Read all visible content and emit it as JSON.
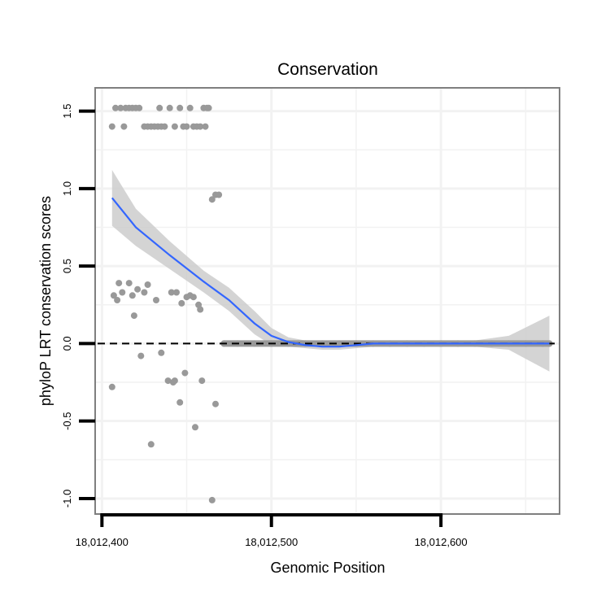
{
  "chart_data": {
    "type": "scatter",
    "title": "Conservation",
    "xlabel": "Genomic Position",
    "ylabel": "phyloP LRT conservation scores",
    "xlim": [
      18012396,
      18012670
    ],
    "ylim": [
      -1.1,
      1.65
    ],
    "x_ticks": [
      {
        "value": 18012400,
        "label": "18,012,400"
      },
      {
        "value": 18012500,
        "label": "18,012,500"
      },
      {
        "value": 18012600,
        "label": "18,012,600"
      }
    ],
    "y_ticks": [
      {
        "value": -1.0,
        "label": "-1.0"
      },
      {
        "value": -0.5,
        "label": "-0.5"
      },
      {
        "value": 0.0,
        "label": "0.0"
      },
      {
        "value": 0.5,
        "label": "0.5"
      },
      {
        "value": 1.0,
        "label": "1.0"
      },
      {
        "value": 1.5,
        "label": "1.5"
      }
    ],
    "reference_line": {
      "y": 0.0,
      "style": "dashed"
    },
    "grid": true,
    "colors": {
      "points": "#999999",
      "smooth_line": "#3366FF",
      "confidence_band": "#CCCCCC",
      "panel_border": "#7F7F7F",
      "grid": "#F2F2F2"
    },
    "points": [
      [
        18012406,
        1.4
      ],
      [
        18012408,
        1.52
      ],
      [
        18012411,
        1.52
      ],
      [
        18012413,
        1.4
      ],
      [
        18012414,
        1.52
      ],
      [
        18012416,
        1.52
      ],
      [
        18012418,
        1.52
      ],
      [
        18012420,
        1.52
      ],
      [
        18012422,
        1.52
      ],
      [
        18012425,
        1.4
      ],
      [
        18012427,
        1.4
      ],
      [
        18012429,
        1.4
      ],
      [
        18012431,
        1.4
      ],
      [
        18012433,
        1.4
      ],
      [
        18012435,
        1.4
      ],
      [
        18012437,
        1.4
      ],
      [
        18012434,
        1.52
      ],
      [
        18012440,
        1.52
      ],
      [
        18012443,
        1.4
      ],
      [
        18012446,
        1.52
      ],
      [
        18012448,
        1.4
      ],
      [
        18012450,
        1.4
      ],
      [
        18012452,
        1.52
      ],
      [
        18012454,
        1.4
      ],
      [
        18012456,
        1.4
      ],
      [
        18012458,
        1.4
      ],
      [
        18012460,
        1.52
      ],
      [
        18012461,
        1.4
      ],
      [
        18012462,
        1.52
      ],
      [
        18012463,
        1.52
      ],
      [
        18012465,
        0.93
      ],
      [
        18012467,
        0.96
      ],
      [
        18012469,
        0.96
      ],
      [
        18012407,
        0.31
      ],
      [
        18012409,
        0.28
      ],
      [
        18012410,
        0.39
      ],
      [
        18012412,
        0.33
      ],
      [
        18012416,
        0.39
      ],
      [
        18012418,
        0.31
      ],
      [
        18012419,
        0.18
      ],
      [
        18012421,
        0.35
      ],
      [
        18012423,
        -0.08
      ],
      [
        18012425,
        0.33
      ],
      [
        18012427,
        0.38
      ],
      [
        18012429,
        -0.65
      ],
      [
        18012432,
        0.28
      ],
      [
        18012435,
        -0.06
      ],
      [
        18012439,
        -0.24
      ],
      [
        18012441,
        0.33
      ],
      [
        18012442,
        -0.25
      ],
      [
        18012443,
        -0.24
      ],
      [
        18012444,
        0.33
      ],
      [
        18012446,
        -0.38
      ],
      [
        18012447,
        0.26
      ],
      [
        18012449,
        -0.19
      ],
      [
        18012450,
        0.3
      ],
      [
        18012452,
        0.31
      ],
      [
        18012454,
        0.3
      ],
      [
        18012455,
        -0.54
      ],
      [
        18012457,
        0.25
      ],
      [
        18012458,
        0.22
      ],
      [
        18012459,
        -0.24
      ],
      [
        18012465,
        -1.01
      ],
      [
        18012467,
        -0.39
      ],
      [
        18012406,
        -0.28
      ],
      [
        18012472,
        0.0
      ],
      [
        18012480,
        0.0
      ],
      [
        18012490,
        0.0
      ],
      [
        18012500,
        0.0
      ],
      [
        18012510,
        0.0
      ],
      [
        18012520,
        0.0
      ],
      [
        18012530,
        0.0
      ],
      [
        18012540,
        0.0
      ],
      [
        18012550,
        0.0
      ],
      [
        18012560,
        0.0
      ],
      [
        18012570,
        0.0
      ],
      [
        18012580,
        0.0
      ],
      [
        18012590,
        0.0
      ],
      [
        18012600,
        0.0
      ],
      [
        18012610,
        0.0
      ],
      [
        18012620,
        0.0
      ],
      [
        18012630,
        0.0
      ],
      [
        18012640,
        0.0
      ],
      [
        18012650,
        0.0
      ],
      [
        18012660,
        0.0
      ],
      [
        18012664,
        0.0
      ]
    ],
    "smooth": {
      "x": [
        18012406,
        18012420,
        18012440,
        18012460,
        18012475,
        18012490,
        18012500,
        18012510,
        18012520,
        18012530,
        18012540,
        18012550,
        18012560,
        18012580,
        18012600,
        18012620,
        18012640,
        18012664
      ],
      "y": [
        0.94,
        0.75,
        0.57,
        0.4,
        0.28,
        0.13,
        0.05,
        0.01,
        -0.01,
        -0.02,
        -0.02,
        -0.01,
        0.0,
        0.0,
        0.0,
        0.0,
        0.0,
        0.0
      ],
      "lower": [
        0.76,
        0.63,
        0.48,
        0.33,
        0.21,
        0.06,
        -0.01,
        -0.02,
        -0.03,
        -0.04,
        -0.04,
        -0.03,
        -0.02,
        -0.02,
        -0.02,
        -0.02,
        -0.04,
        -0.18
      ],
      "upper": [
        1.12,
        0.87,
        0.66,
        0.47,
        0.36,
        0.21,
        0.1,
        0.04,
        0.02,
        0.01,
        0.01,
        0.01,
        0.02,
        0.02,
        0.02,
        0.02,
        0.05,
        0.18
      ]
    }
  }
}
